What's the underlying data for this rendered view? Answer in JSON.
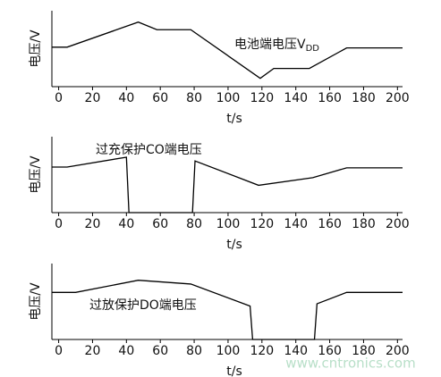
{
  "chart_data": [
    {
      "type": "line",
      "annotation": "电池端电压V",
      "annotation_sub": "DD",
      "xlabel": "t/s",
      "ylabel": "电压/V",
      "x": [
        -4,
        5,
        47,
        58,
        78,
        119,
        127,
        148,
        170,
        203
      ],
      "series": [
        {
          "color": "#000000",
          "values": [
            5.2,
            5.2,
            8.5,
            7.5,
            7.5,
            1.1,
            2.4,
            2.4,
            5.1,
            5.1
          ]
        }
      ],
      "xlim": [
        -4,
        203
      ],
      "ylim": [
        0,
        10
      ],
      "xticks": [
        0,
        20,
        40,
        60,
        80,
        100,
        120,
        140,
        160,
        180,
        200
      ]
    },
    {
      "type": "line",
      "annotation": "过充保护CO端电压",
      "xlabel": "t/s",
      "ylabel": "电压/V",
      "x": [
        -4,
        5,
        40,
        41.5,
        79,
        80.5,
        118,
        150,
        170,
        203
      ],
      "series": [
        {
          "color": "#000000",
          "values": [
            6,
            6,
            7.3,
            0,
            0,
            6.8,
            3.6,
            4.6,
            5.9,
            5.9
          ]
        }
      ],
      "xlim": [
        -4,
        203
      ],
      "ylim": [
        0,
        10
      ],
      "xticks": [
        0,
        20,
        40,
        60,
        80,
        100,
        120,
        140,
        160,
        180,
        200
      ]
    },
    {
      "type": "line",
      "annotation": "过放保护DO端电压",
      "xlabel": "t/s",
      "ylabel": "电压/V",
      "x": [
        -4,
        10,
        47,
        78,
        113,
        114.5,
        151,
        152.5,
        170,
        203
      ],
      "series": [
        {
          "color": "#000000",
          "values": [
            6.2,
            6.2,
            7.8,
            7.3,
            4.4,
            0,
            0,
            4.7,
            6.2,
            6.2
          ]
        }
      ],
      "xlim": [
        -4,
        203
      ],
      "ylim": [
        0,
        10
      ],
      "xticks": [
        0,
        20,
        40,
        60,
        80,
        100,
        120,
        140,
        160,
        180,
        200
      ]
    }
  ],
  "watermark": "www.cntronics.com"
}
